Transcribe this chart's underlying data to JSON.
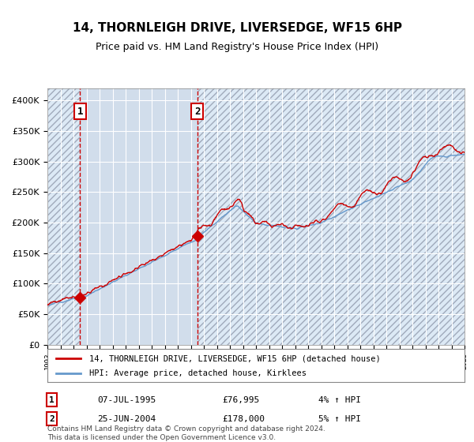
{
  "title": "14, THORNLEIGH DRIVE, LIVERSEDGE, WF15 6HP",
  "subtitle": "Price paid vs. HM Land Registry's House Price Index (HPI)",
  "sale1_date": "07-JUL-1995",
  "sale1_price": 76995,
  "sale1_hpi": "4% ↑ HPI",
  "sale1_label": "1",
  "sale2_date": "25-JUN-2004",
  "sale2_price": 178000,
  "sale2_hpi": "5% ↑ HPI",
  "sale2_label": "2",
  "legend_line1": "14, THORNLEIGH DRIVE, LIVERSEDGE, WF15 6HP (detached house)",
  "legend_line2": "HPI: Average price, detached house, Kirklees",
  "footer": "Contains HM Land Registry data © Crown copyright and database right 2024.\nThis data is licensed under the Open Government Licence v3.0.",
  "hpi_color": "#6699cc",
  "price_color": "#cc0000",
  "marker_color": "#cc0000",
  "background_color": "#ffffff",
  "plot_bg_color": "#dce9f5",
  "hatch_color": "#b0b8c8",
  "grid_color": "#ffffff",
  "dashed_line_color": "#cc0000",
  "ylim": [
    0,
    420000
  ],
  "yticks": [
    0,
    50000,
    100000,
    150000,
    200000,
    250000,
    300000,
    350000,
    400000
  ],
  "ytick_labels": [
    "£0",
    "£50K",
    "£100K",
    "£150K",
    "£200K",
    "£250K",
    "£300K",
    "£350K",
    "£400K"
  ],
  "year_start": 1993,
  "year_end": 2025,
  "sale1_year": 1995.5,
  "sale2_year": 2004.5
}
